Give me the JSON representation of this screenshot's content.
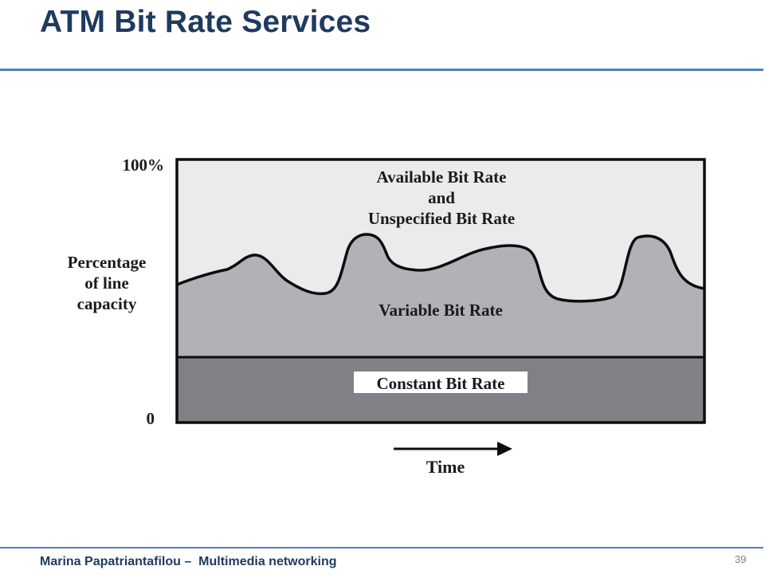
{
  "slide": {
    "title": "ATM Bit Rate Services",
    "footer": "Marina Papatriantafilou –  Multimedia networking",
    "page_number": "39"
  },
  "diagram": {
    "y_axis_top_label": "100%",
    "y_axis_bottom_label": "0",
    "y_axis_title_lines": [
      "Percentage",
      "of line",
      "capacity"
    ],
    "x_axis_label": "Time",
    "regions": {
      "top_lines": [
        "Available Bit Rate",
        "and",
        "Unspecified Bit Rate"
      ],
      "middle": "Variable Bit Rate",
      "bottom": "Constant Bit Rate"
    },
    "colors": {
      "abr_ubr_fill": "#ebebee",
      "vbr_fill": "#b2b1b6",
      "cbr_fill": "#818086",
      "frame": "#0d0d0d",
      "title": "#1f3a5f",
      "rule": "#4f81bd"
    }
  }
}
